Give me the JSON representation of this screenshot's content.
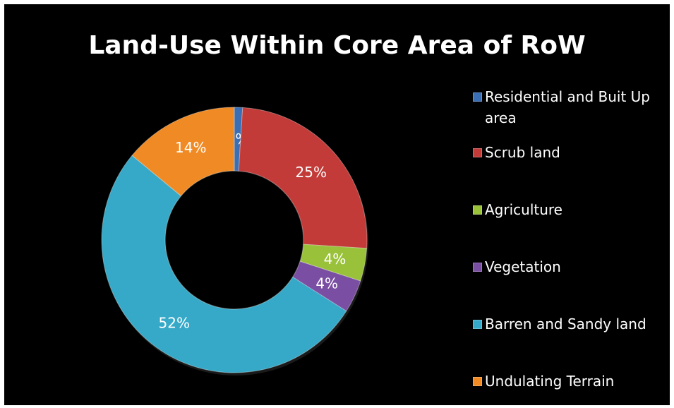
{
  "chart_data": {
    "type": "pie",
    "title": "Land-Use Within Core Area of RoW",
    "donut": true,
    "legend_position": "right",
    "slices": [
      {
        "label": "Residential and Buit Up area",
        "value": 1,
        "data_label": "1%",
        "color": "#3A6FB5"
      },
      {
        "label": "Scrub land",
        "value": 25,
        "data_label": "25%",
        "color": "#C23B39"
      },
      {
        "label": "Agriculture",
        "value": 4,
        "data_label": "4%",
        "color": "#99C23A"
      },
      {
        "label": "Vegetation",
        "value": 4,
        "data_label": "4%",
        "color": "#7A4FA3"
      },
      {
        "label": "Barren and Sandy land",
        "value": 52,
        "data_label": "52%",
        "color": "#36A9C8"
      },
      {
        "label": "Undulating Terrain",
        "value": 14,
        "data_label": "14%",
        "color": "#F08A24"
      }
    ]
  }
}
